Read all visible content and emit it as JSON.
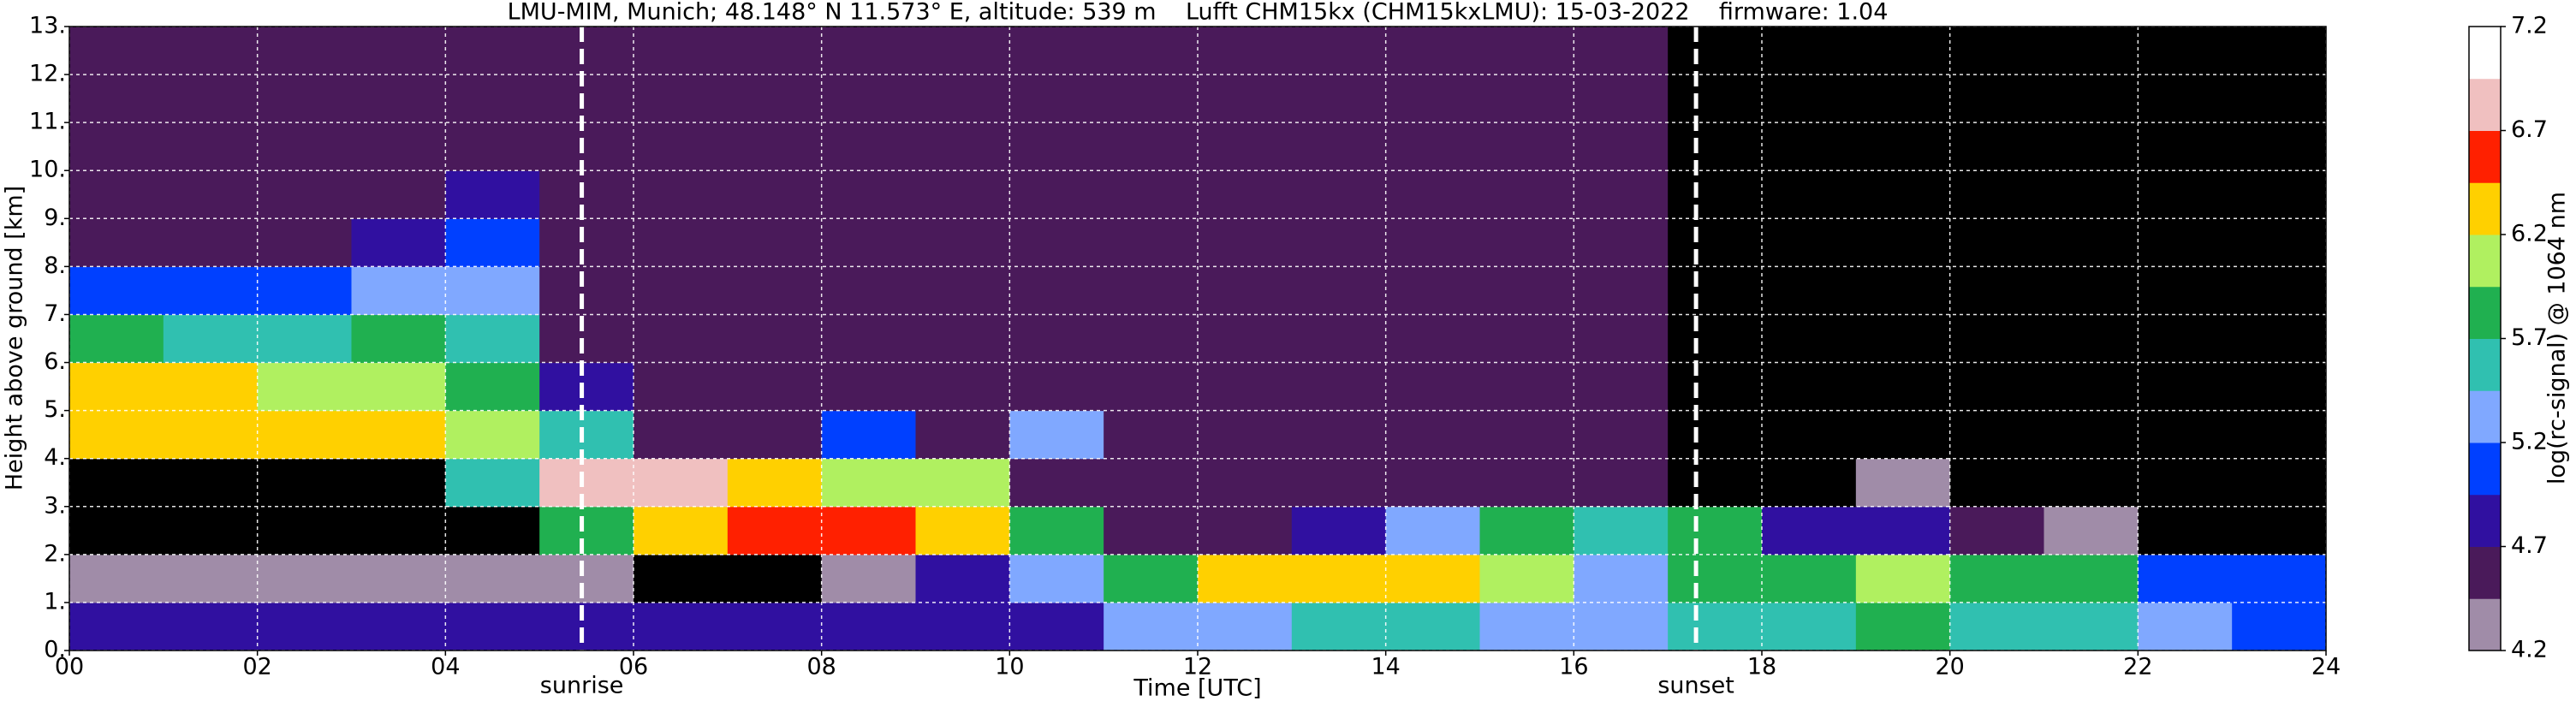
{
  "chart_data": {
    "type": "heatmap",
    "title": "LMU-MIM, Munich; 48.148° N 11.573° E, altitude: 539 m    Lufft CHM15kx (CHM15kxLMU): 15-03-2022    firmware: 1.04",
    "x_label": "Time [UTC]",
    "y_label": "Height above ground [km]",
    "colorbar_label": "log(rc-signal) @ 1064 nm",
    "xlim": [
      0,
      24
    ],
    "ylim": [
      0,
      13
    ],
    "xticks": [
      {
        "value": 0,
        "label": "00"
      },
      {
        "value": 2,
        "label": "02"
      },
      {
        "value": 4,
        "label": "04"
      },
      {
        "value": 6,
        "label": "06"
      },
      {
        "value": 8,
        "label": "08"
      },
      10,
      12,
      14,
      16,
      18,
      20,
      22,
      24
    ],
    "yticks": [
      {
        "value": 0,
        "label": "0."
      },
      {
        "value": 1,
        "label": "1."
      },
      {
        "value": 2,
        "label": "2."
      },
      {
        "value": 3,
        "label": "3."
      },
      {
        "value": 4,
        "label": "4."
      },
      {
        "value": 5,
        "label": "5."
      },
      {
        "value": 6,
        "label": "6."
      },
      {
        "value": 7,
        "label": "7."
      },
      {
        "value": 8,
        "label": "8."
      },
      {
        "value": 9,
        "label": "9."
      },
      {
        "value": 10,
        "label": "10."
      },
      {
        "value": 11,
        "label": "11."
      },
      {
        "value": 12,
        "label": "12."
      },
      {
        "value": 13,
        "label": "13."
      }
    ],
    "grid": true,
    "clim": [
      4.2,
      7.2
    ],
    "cticks": [
      4.2,
      4.7,
      5.2,
      5.7,
      6.2,
      6.7,
      7.2
    ],
    "colormap": [
      "#a08ca8",
      "#4a1a5a",
      "#3010a0",
      "#0040ff",
      "#80a8ff",
      "#30c0b0",
      "#20b050",
      "#b0f060",
      "#ffd000",
      "#ff2000",
      "#f0c0c0",
      "#ffffff"
    ],
    "under_color": "#000000",
    "annotations": [
      {
        "text": "sunrise",
        "x": 5.45
      },
      {
        "text": "sunset",
        "x": 17.3
      }
    ],
    "xbins": [
      0,
      1,
      2,
      3,
      4,
      5,
      6,
      7,
      8,
      9,
      10,
      11,
      12,
      13,
      14,
      15,
      16,
      17,
      18,
      19,
      20,
      21,
      22,
      23,
      24
    ],
    "ybins": [
      0,
      1,
      2,
      3,
      4,
      5,
      6,
      7,
      8,
      9,
      10,
      11,
      12,
      13
    ],
    "z": [
      [
        4.8,
        4.8,
        4.8,
        4.8,
        4.8,
        4.8,
        4.8,
        4.8,
        4.8,
        4.8,
        4.9,
        5.3,
        5.4,
        5.5,
        5.5,
        5.4,
        5.3,
        5.6,
        5.6,
        5.7,
        5.6,
        5.6,
        5.2,
        5.1
      ],
      [
        4.3,
        4.3,
        4.3,
        4.3,
        4.3,
        4.2,
        4.0,
        4.0,
        4.3,
        4.8,
        5.3,
        5.8,
        6.2,
        6.3,
        6.4,
        6.1,
        5.3,
        5.8,
        5.9,
        6.0,
        5.8,
        5.7,
        5.1,
        5.0
      ],
      [
        4.0,
        4.0,
        4.0,
        4.0,
        4.0,
        5.8,
        6.4,
        6.5,
        6.6,
        6.2,
        5.8,
        4.6,
        4.6,
        4.7,
        5.2,
        5.9,
        5.6,
        5.7,
        4.9,
        4.7,
        4.6,
        4.2,
        4.0,
        4.0
      ],
      [
        4.0,
        4.0,
        4.0,
        4.0,
        5.5,
        6.9,
        6.8,
        6.3,
        6.0,
        6.1,
        4.6,
        4.6,
        4.6,
        4.6,
        4.6,
        4.6,
        4.6,
        4.1,
        4.0,
        4.3,
        4.0,
        4.0,
        4.0,
        4.0
      ],
      [
        6.3,
        6.4,
        6.4,
        6.3,
        6.0,
        5.6,
        4.6,
        4.6,
        5.0,
        4.6,
        5.3,
        4.6,
        4.6,
        4.6,
        4.6,
        4.6,
        4.6,
        4.1,
        4.0,
        4.0,
        4.0,
        4.0,
        4.0,
        4.0
      ],
      [
        6.2,
        6.2,
        6.1,
        6.1,
        5.9,
        4.7,
        4.6,
        4.6,
        4.6,
        4.6,
        4.6,
        4.6,
        4.6,
        4.6,
        4.6,
        4.6,
        4.6,
        4.1,
        4.0,
        4.0,
        4.0,
        4.0,
        4.0,
        4.0
      ],
      [
        5.7,
        5.6,
        5.6,
        5.7,
        5.5,
        4.6,
        4.6,
        4.6,
        4.6,
        4.6,
        4.6,
        4.6,
        4.6,
        4.6,
        4.6,
        4.6,
        4.6,
        4.1,
        4.1,
        4.1,
        4.1,
        4.1,
        4.1,
        4.1
      ],
      [
        5.1,
        5.0,
        5.1,
        5.2,
        5.3,
        4.6,
        4.6,
        4.6,
        4.6,
        4.6,
        4.6,
        4.6,
        4.6,
        4.6,
        4.6,
        4.6,
        4.6,
        4.1,
        4.1,
        4.1,
        4.1,
        4.1,
        4.1,
        4.1
      ],
      [
        4.5,
        4.5,
        4.6,
        4.8,
        5.1,
        4.6,
        4.6,
        4.6,
        4.6,
        4.6,
        4.6,
        4.6,
        4.6,
        4.6,
        4.6,
        4.6,
        4.6,
        4.1,
        4.1,
        4.1,
        4.1,
        4.1,
        4.1,
        4.1
      ],
      [
        4.5,
        4.5,
        4.5,
        4.5,
        4.7,
        4.6,
        4.6,
        4.6,
        4.6,
        4.6,
        4.6,
        4.6,
        4.6,
        4.6,
        4.6,
        4.6,
        4.6,
        4.1,
        4.1,
        4.1,
        4.1,
        4.1,
        4.1,
        4.1
      ],
      [
        4.5,
        4.5,
        4.5,
        4.5,
        4.5,
        4.6,
        4.6,
        4.6,
        4.6,
        4.6,
        4.6,
        4.6,
        4.6,
        4.6,
        4.6,
        4.6,
        4.6,
        4.1,
        4.1,
        4.1,
        4.1,
        4.1,
        4.1,
        4.1
      ],
      [
        4.5,
        4.5,
        4.5,
        4.5,
        4.5,
        4.6,
        4.6,
        4.6,
        4.6,
        4.6,
        4.6,
        4.6,
        4.6,
        4.6,
        4.6,
        4.6,
        4.6,
        4.1,
        4.1,
        4.1,
        4.1,
        4.1,
        4.1,
        4.1
      ],
      [
        4.5,
        4.5,
        4.5,
        4.5,
        4.5,
        4.6,
        4.6,
        4.6,
        4.6,
        4.6,
        4.6,
        4.6,
        4.6,
        4.6,
        4.6,
        4.6,
        4.6,
        4.1,
        4.1,
        4.1,
        4.1,
        4.1,
        4.1,
        4.1
      ]
    ]
  }
}
